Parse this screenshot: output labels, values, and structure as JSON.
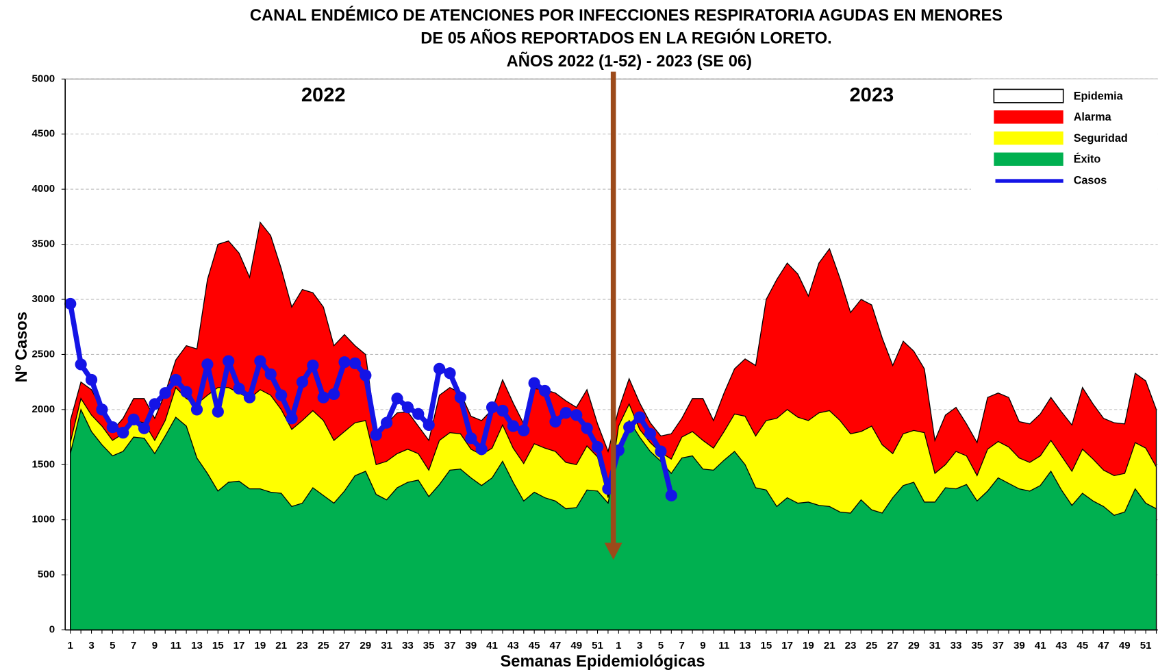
{
  "chart_data": {
    "type": "area",
    "title": [
      "CANAL ENDÉMICO DE ATENCIONES POR INFECCIONES RESPIRATORIA AGUDAS EN MENORES",
      "DE 05 AÑOS REPORTADOS EN LA REGIÓN LORETO.",
      "AÑOS 2022 (1-52) - 2023 (SE 06)"
    ],
    "x_label": "Semanas Epidemiológicas",
    "y_label": "Nº Casos",
    "annotations": [
      "2022",
      "2023"
    ],
    "categories": [
      "1",
      null,
      "3",
      null,
      "5",
      null,
      "7",
      null,
      "9",
      null,
      "11",
      null,
      "13",
      null,
      "15",
      null,
      "17",
      null,
      "19",
      null,
      "21",
      null,
      "23",
      null,
      "25",
      null,
      "27",
      null,
      "29",
      null,
      "31",
      null,
      "33",
      null,
      "35",
      null,
      "37",
      null,
      "39",
      null,
      "41",
      null,
      "43",
      null,
      "45",
      null,
      "47",
      null,
      "49",
      null,
      "51",
      null,
      "1",
      null,
      "3",
      null,
      "5",
      null,
      "7",
      null,
      "9",
      null,
      "11",
      null,
      "13",
      null,
      "15",
      null,
      "17",
      null,
      "19",
      null,
      "21",
      null,
      "23",
      null,
      "25",
      null,
      "27",
      null,
      "29",
      null,
      "31",
      null,
      "33",
      null,
      "35",
      null,
      "37",
      null,
      "39",
      null,
      "41",
      null,
      "43",
      null,
      "45",
      null,
      "47",
      null,
      "49",
      null,
      "51",
      null
    ],
    "series": [
      {
        "name": "Epidemia",
        "color": "#ffffff"
      },
      {
        "name": "Alarma",
        "color": "#ff0000",
        "values": [
          1900,
          2250,
          2180,
          2000,
          1810,
          1920,
          2100,
          2100,
          1920,
          2150,
          2450,
          2580,
          2550,
          3180,
          3500,
          3530,
          3420,
          3200,
          3700,
          3580,
          3280,
          2930,
          3090,
          3060,
          2930,
          2580,
          2680,
          2580,
          2500,
          1800,
          1870,
          1970,
          1980,
          1850,
          1720,
          2130,
          2200,
          2150,
          1940,
          1900,
          2000,
          2270,
          2060,
          1870,
          2190,
          2180,
          2150,
          2080,
          2020,
          2180,
          1870,
          1620,
          2000,
          2280,
          2060,
          1880,
          1760,
          1780,
          1920,
          2100,
          2100,
          1900,
          2150,
          2370,
          2460,
          2400,
          3000,
          3180,
          3330,
          3230,
          3030,
          3330,
          3460,
          3190,
          2880,
          3000,
          2950,
          2650,
          2400,
          2620,
          2530,
          2370,
          1720,
          1950,
          2020,
          1870,
          1700,
          2110,
          2150,
          2110,
          1890,
          1870,
          1960,
          2110,
          1980,
          1860,
          2200,
          2050,
          1920,
          1880,
          1870,
          2330,
          2260,
          2000
        ]
      },
      {
        "name": "Seguridad",
        "color": "#ffff00",
        "values": [
          1700,
          2100,
          1950,
          1850,
          1720,
          1780,
          1900,
          1880,
          1720,
          1900,
          2200,
          2100,
          2050,
          2130,
          2200,
          2200,
          2150,
          2100,
          2180,
          2130,
          2000,
          1820,
          1900,
          1990,
          1900,
          1720,
          1800,
          1880,
          1900,
          1500,
          1530,
          1600,
          1640,
          1600,
          1450,
          1720,
          1790,
          1780,
          1640,
          1590,
          1650,
          1860,
          1650,
          1510,
          1690,
          1650,
          1620,
          1520,
          1500,
          1670,
          1570,
          1200,
          1850,
          2050,
          1820,
          1700,
          1610,
          1550,
          1750,
          1800,
          1720,
          1650,
          1800,
          1960,
          1940,
          1760,
          1900,
          1920,
          2000,
          1930,
          1900,
          1970,
          1990,
          1900,
          1780,
          1800,
          1850,
          1680,
          1600,
          1780,
          1810,
          1790,
          1420,
          1500,
          1620,
          1580,
          1400,
          1640,
          1710,
          1660,
          1560,
          1520,
          1580,
          1720,
          1580,
          1440,
          1640,
          1550,
          1450,
          1400,
          1420,
          1700,
          1650,
          1480
        ]
      },
      {
        "name": "Éxito",
        "color": "#00b050",
        "values": [
          1600,
          2000,
          1800,
          1680,
          1580,
          1620,
          1750,
          1740,
          1600,
          1760,
          1930,
          1850,
          1560,
          1420,
          1260,
          1340,
          1350,
          1280,
          1280,
          1250,
          1240,
          1120,
          1150,
          1290,
          1220,
          1150,
          1260,
          1400,
          1440,
          1230,
          1180,
          1290,
          1340,
          1360,
          1210,
          1320,
          1450,
          1460,
          1380,
          1310,
          1380,
          1530,
          1340,
          1170,
          1250,
          1200,
          1170,
          1100,
          1110,
          1270,
          1260,
          1150,
          1650,
          1900,
          1750,
          1620,
          1530,
          1420,
          1560,
          1580,
          1460,
          1450,
          1540,
          1620,
          1500,
          1290,
          1270,
          1120,
          1200,
          1150,
          1160,
          1130,
          1120,
          1070,
          1060,
          1180,
          1090,
          1060,
          1200,
          1310,
          1340,
          1160,
          1160,
          1290,
          1280,
          1320,
          1170,
          1260,
          1380,
          1330,
          1280,
          1260,
          1310,
          1440,
          1270,
          1130,
          1240,
          1170,
          1120,
          1040,
          1070,
          1280,
          1150,
          1100
        ]
      },
      {
        "name": "Casos",
        "color": "#1414e6",
        "values": [
          2960,
          2410,
          2270,
          2000,
          1840,
          1790,
          1910,
          1830,
          2050,
          2150,
          2270,
          2160,
          2000,
          2410,
          1980,
          2440,
          2190,
          2110,
          2440,
          2320,
          2130,
          1920,
          2250,
          2400,
          2110,
          2140,
          2430,
          2420,
          2310,
          1770,
          1880,
          2100,
          2020,
          1960,
          1860,
          2370,
          2330,
          2110,
          1740,
          1640,
          2020,
          1990,
          1850,
          1810,
          2240,
          2170,
          1890,
          1970,
          1950,
          1830,
          1660,
          1280,
          1630,
          1840,
          1930,
          1780,
          1620,
          1220,
          null,
          null,
          null,
          null,
          null,
          null,
          null,
          null,
          null,
          null,
          null,
          null,
          null,
          null,
          null,
          null,
          null,
          null,
          null,
          null,
          null,
          null,
          null,
          null,
          null,
          null,
          null,
          null,
          null,
          null,
          null,
          null,
          null,
          null,
          null,
          null,
          null,
          null,
          null,
          null,
          null,
          null,
          null,
          null,
          null,
          null
        ]
      }
    ],
    "ylim": [
      0,
      5000
    ],
    "yticks": [
      0,
      500,
      1000,
      1500,
      2000,
      2500,
      3000,
      3500,
      4000,
      4500,
      5000
    ],
    "grid": true,
    "legend": "upper right",
    "arrow_color": "#9c4a1a"
  }
}
